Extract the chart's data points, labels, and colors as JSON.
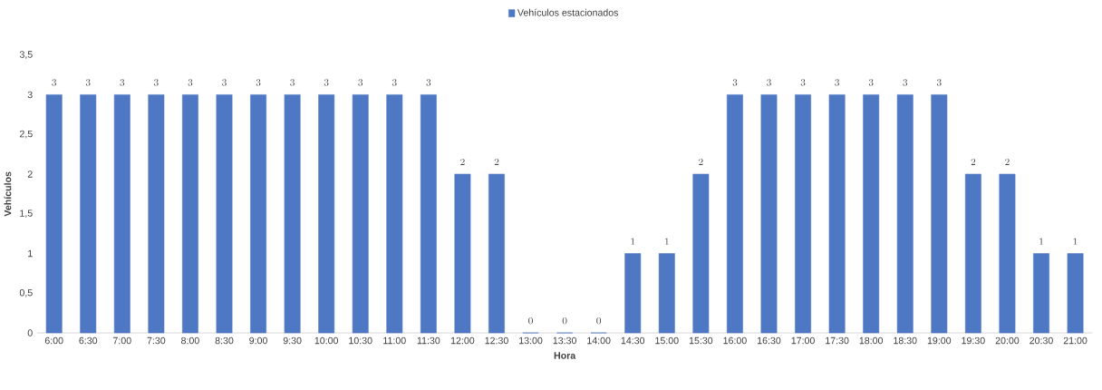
{
  "chart_data": {
    "type": "bar",
    "xlabel": "Hora",
    "ylabel": "Vehículos",
    "categories": [
      "6:00",
      "6:30",
      "7:00",
      "7:30",
      "8:00",
      "8:30",
      "9:00",
      "9:30",
      "10:00",
      "10:30",
      "11:00",
      "11:30",
      "12:00",
      "12:30",
      "13:00",
      "13:30",
      "14:00",
      "14:30",
      "15:00",
      "15:30",
      "16:00",
      "16:30",
      "17:00",
      "17:30",
      "18:00",
      "18:30",
      "19:00",
      "19:30",
      "20:00",
      "20:30",
      "21:00"
    ],
    "series": [
      {
        "name": "Vehículos estacionados",
        "color": "#4f78c4",
        "values": [
          3,
          3,
          3,
          3,
          3,
          3,
          3,
          3,
          3,
          3,
          3,
          3,
          2,
          2,
          0,
          0,
          0,
          1,
          1,
          2,
          3,
          3,
          3,
          3,
          3,
          3,
          3,
          2,
          2,
          1,
          1
        ]
      }
    ],
    "ylim": [
      0,
      3.5
    ],
    "yticks": [
      0,
      {
        "value": 0.5,
        "label": "0,5"
      },
      1,
      {
        "value": 1.5,
        "label": "1,5"
      },
      2,
      {
        "value": 2.5,
        "label": "2,5"
      },
      3,
      {
        "value": 3.5,
        "label": "3,5"
      }
    ],
    "data_labels": true,
    "grid": false,
    "legend": "top"
  }
}
